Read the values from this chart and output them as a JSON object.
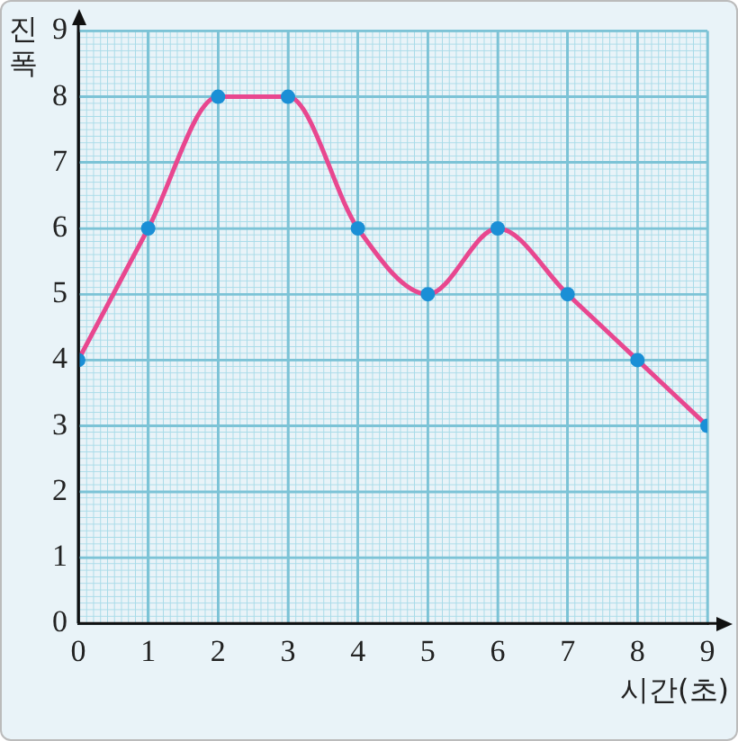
{
  "chart_data": {
    "type": "line",
    "xlabel": "시간(초)",
    "ylabel": "진폭",
    "x": [
      0,
      1,
      2,
      3,
      4,
      5,
      6,
      7,
      8,
      9
    ],
    "series": [
      {
        "color": "#e8478f",
        "values": [
          4,
          6,
          8,
          8,
          6,
          5,
          6,
          5,
          4,
          3
        ]
      }
    ],
    "marker": "circle",
    "line_style": "solid",
    "grid": true,
    "legend": false,
    "xlim": [
      0,
      9
    ],
    "ylim": [
      0,
      9
    ],
    "xticks": [
      0,
      1,
      2,
      3,
      4,
      5,
      6,
      7,
      8,
      9
    ],
    "yticks": [
      0,
      1,
      2,
      3,
      4,
      5,
      6,
      7,
      8,
      9
    ]
  }
}
